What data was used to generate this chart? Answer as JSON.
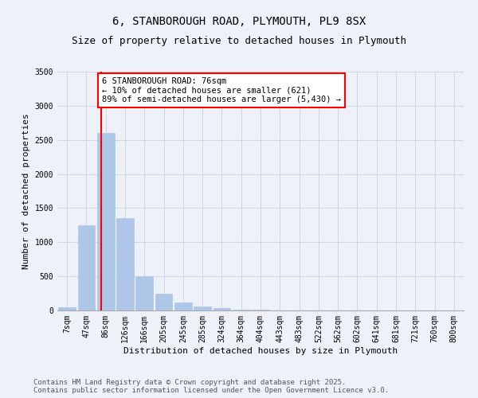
{
  "title_line1": "6, STANBOROUGH ROAD, PLYMOUTH, PL9 8SX",
  "title_line2": "Size of property relative to detached houses in Plymouth",
  "xlabel": "Distribution of detached houses by size in Plymouth",
  "ylabel": "Number of detached properties",
  "categories": [
    "7sqm",
    "47sqm",
    "86sqm",
    "126sqm",
    "166sqm",
    "205sqm",
    "245sqm",
    "285sqm",
    "324sqm",
    "364sqm",
    "404sqm",
    "443sqm",
    "483sqm",
    "522sqm",
    "562sqm",
    "602sqm",
    "641sqm",
    "681sqm",
    "721sqm",
    "760sqm",
    "800sqm"
  ],
  "values": [
    50,
    1250,
    2600,
    1350,
    500,
    250,
    120,
    55,
    35,
    15,
    10,
    0,
    0,
    0,
    0,
    0,
    0,
    0,
    0,
    0,
    0
  ],
  "bar_color": "#aec6e8",
  "bar_edgecolor": "#aec6e8",
  "grid_color": "#d0d8e8",
  "bg_color": "#eef2f8",
  "annotation_box_text": "6 STANBOROUGH ROAD: 76sqm\n← 10% of detached houses are smaller (621)\n89% of semi-detached houses are larger (5,430) →",
  "annotation_box_edgecolor": "red",
  "annotation_box_facecolor": "white",
  "vline_x": 1.76,
  "vline_color": "red",
  "ylim": [
    0,
    3500
  ],
  "yticks": [
    0,
    500,
    1000,
    1500,
    2000,
    2500,
    3000,
    3500
  ],
  "footer_line1": "Contains HM Land Registry data © Crown copyright and database right 2025.",
  "footer_line2": "Contains public sector information licensed under the Open Government Licence v3.0.",
  "title_fontsize": 10,
  "subtitle_fontsize": 9,
  "axis_label_fontsize": 8,
  "tick_fontsize": 7,
  "annotation_fontsize": 7.5,
  "footer_fontsize": 6.5
}
